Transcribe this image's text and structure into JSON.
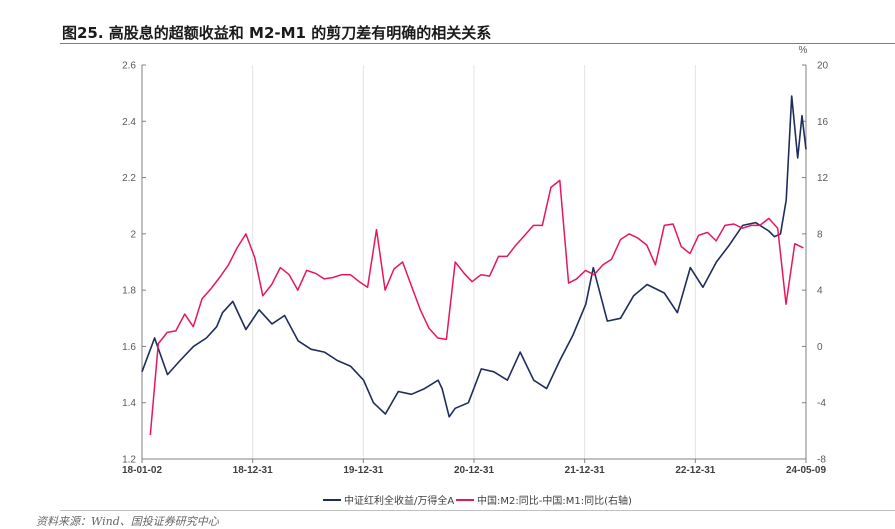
{
  "figure": {
    "title": "图25. 高股息的超额收益和 M2-M1 的剪刀差有明确的相关关系",
    "source": "资料来源：Wind、国投证券研究中心"
  },
  "chart_data": {
    "type": "line",
    "y_right_unit": "%",
    "x_tick_labels": [
      "18-01-02",
      "18-12-31",
      "19-12-31",
      "20-12-31",
      "21-12-31",
      "22-12-31",
      "24-05-09"
    ],
    "x_range": [
      "2018-01-02",
      "2024-05-09"
    ],
    "ylim_left": [
      1.2,
      2.6
    ],
    "ylim_right": [
      -8,
      20
    ],
    "y_left_ticks": [
      1.2,
      1.4,
      1.6,
      1.8,
      2.0,
      2.2,
      2.4,
      2.6
    ],
    "y_right_ticks": [
      -8,
      -4,
      0,
      4,
      8,
      12,
      16,
      20
    ],
    "grid": "vertical",
    "legend_position": "bottom",
    "series": [
      {
        "name": "中证红利全收益/万得全A",
        "axis": "left",
        "color": "#1f2d5c",
        "x": [
          "2018-01-02",
          "2018-02-15",
          "2018-04-01",
          "2018-05-15",
          "2018-07-01",
          "2018-08-15",
          "2018-09-20",
          "2018-10-10",
          "2018-11-15",
          "2018-12-31",
          "2019-02-15",
          "2019-04-01",
          "2019-05-15",
          "2019-07-01",
          "2019-08-15",
          "2019-10-01",
          "2019-11-15",
          "2019-12-31",
          "2020-02-15",
          "2020-03-20",
          "2020-05-01",
          "2020-06-15",
          "2020-07-31",
          "2020-09-15",
          "2020-11-01",
          "2020-11-15",
          "2020-12-10",
          "2020-12-31",
          "2021-02-15",
          "2021-04-01",
          "2021-05-15",
          "2021-07-01",
          "2021-08-15",
          "2021-10-01",
          "2021-11-15",
          "2021-12-31",
          "2022-02-15",
          "2022-04-01",
          "2022-04-27",
          "2022-06-15",
          "2022-07-31",
          "2022-09-15",
          "2022-11-01",
          "2022-12-31",
          "2023-02-15",
          "2023-04-01",
          "2023-05-15",
          "2023-07-01",
          "2023-08-15",
          "2023-10-01",
          "2023-11-15",
          "2023-12-31",
          "2024-01-20",
          "2024-02-10",
          "2024-03-01",
          "2024-03-20",
          "2024-04-10",
          "2024-04-25",
          "2024-05-09"
        ],
        "y": [
          1.51,
          1.63,
          1.5,
          1.55,
          1.6,
          1.63,
          1.67,
          1.72,
          1.76,
          1.66,
          1.73,
          1.68,
          1.71,
          1.62,
          1.59,
          1.58,
          1.55,
          1.53,
          1.48,
          1.4,
          1.36,
          1.44,
          1.43,
          1.45,
          1.48,
          1.45,
          1.35,
          1.38,
          1.4,
          1.52,
          1.51,
          1.48,
          1.58,
          1.48,
          1.45,
          1.55,
          1.64,
          1.75,
          1.88,
          1.69,
          1.7,
          1.78,
          1.82,
          1.79,
          1.72,
          1.88,
          1.81,
          1.9,
          1.96,
          2.03,
          2.04,
          2.01,
          1.99,
          2.0,
          2.12,
          2.49,
          2.27,
          2.42,
          2.3
        ]
      },
      {
        "name": "中国:M2:同比-中国:M1:同比(右轴)",
        "axis": "right",
        "color": "#e6175e",
        "x": [
          "2018-01-31",
          "2018-02-28",
          "2018-03-31",
          "2018-04-30",
          "2018-05-31",
          "2018-06-30",
          "2018-07-31",
          "2018-08-31",
          "2018-09-30",
          "2018-10-31",
          "2018-11-30",
          "2018-12-31",
          "2019-01-31",
          "2019-02-28",
          "2019-03-31",
          "2019-04-30",
          "2019-05-31",
          "2019-06-30",
          "2019-07-31",
          "2019-08-31",
          "2019-09-30",
          "2019-10-31",
          "2019-11-30",
          "2019-12-31",
          "2020-01-31",
          "2020-02-29",
          "2020-03-31",
          "2020-04-30",
          "2020-05-31",
          "2020-06-30",
          "2020-07-31",
          "2020-08-31",
          "2020-09-30",
          "2020-10-31",
          "2020-11-30",
          "2020-12-31",
          "2021-01-31",
          "2021-02-28",
          "2021-03-31",
          "2021-04-30",
          "2021-05-31",
          "2021-06-30",
          "2021-07-31",
          "2021-08-31",
          "2021-09-30",
          "2021-10-31",
          "2021-11-30",
          "2021-12-31",
          "2022-01-31",
          "2022-02-28",
          "2022-03-31",
          "2022-04-30",
          "2022-05-31",
          "2022-06-30",
          "2022-07-31",
          "2022-08-31",
          "2022-09-30",
          "2022-10-31",
          "2022-11-30",
          "2022-12-31",
          "2023-01-31",
          "2023-02-28",
          "2023-03-31",
          "2023-04-30",
          "2023-05-31",
          "2023-06-30",
          "2023-07-31",
          "2023-08-31",
          "2023-09-30",
          "2023-10-31",
          "2023-11-30",
          "2023-12-31",
          "2024-01-31",
          "2024-02-29",
          "2024-03-31",
          "2024-04-30"
        ],
        "y": [
          -6.3,
          0.2,
          1.0,
          1.1,
          2.3,
          1.4,
          3.4,
          4.1,
          4.9,
          5.8,
          7.0,
          8.0,
          6.3,
          3.6,
          4.4,
          5.6,
          5.1,
          4.0,
          5.4,
          5.2,
          4.8,
          4.9,
          5.1,
          5.1,
          4.6,
          4.2,
          8.3,
          4.0,
          5.5,
          6.0,
          4.3,
          2.6,
          1.3,
          0.6,
          0.5,
          6.0,
          5.2,
          4.6,
          5.1,
          5.0,
          6.4,
          6.4,
          7.2,
          7.9,
          8.6,
          8.6,
          11.3,
          11.8,
          4.5,
          4.8,
          5.4,
          5.1,
          5.8,
          6.2,
          7.6,
          8.0,
          7.7,
          7.2,
          5.8,
          8.6,
          8.7,
          7.1,
          6.6,
          7.9,
          8.1,
          7.5,
          8.6,
          8.7,
          8.4,
          8.6,
          8.6,
          9.1,
          8.4,
          3.0,
          7.3,
          7.0
        ]
      }
    ]
  }
}
